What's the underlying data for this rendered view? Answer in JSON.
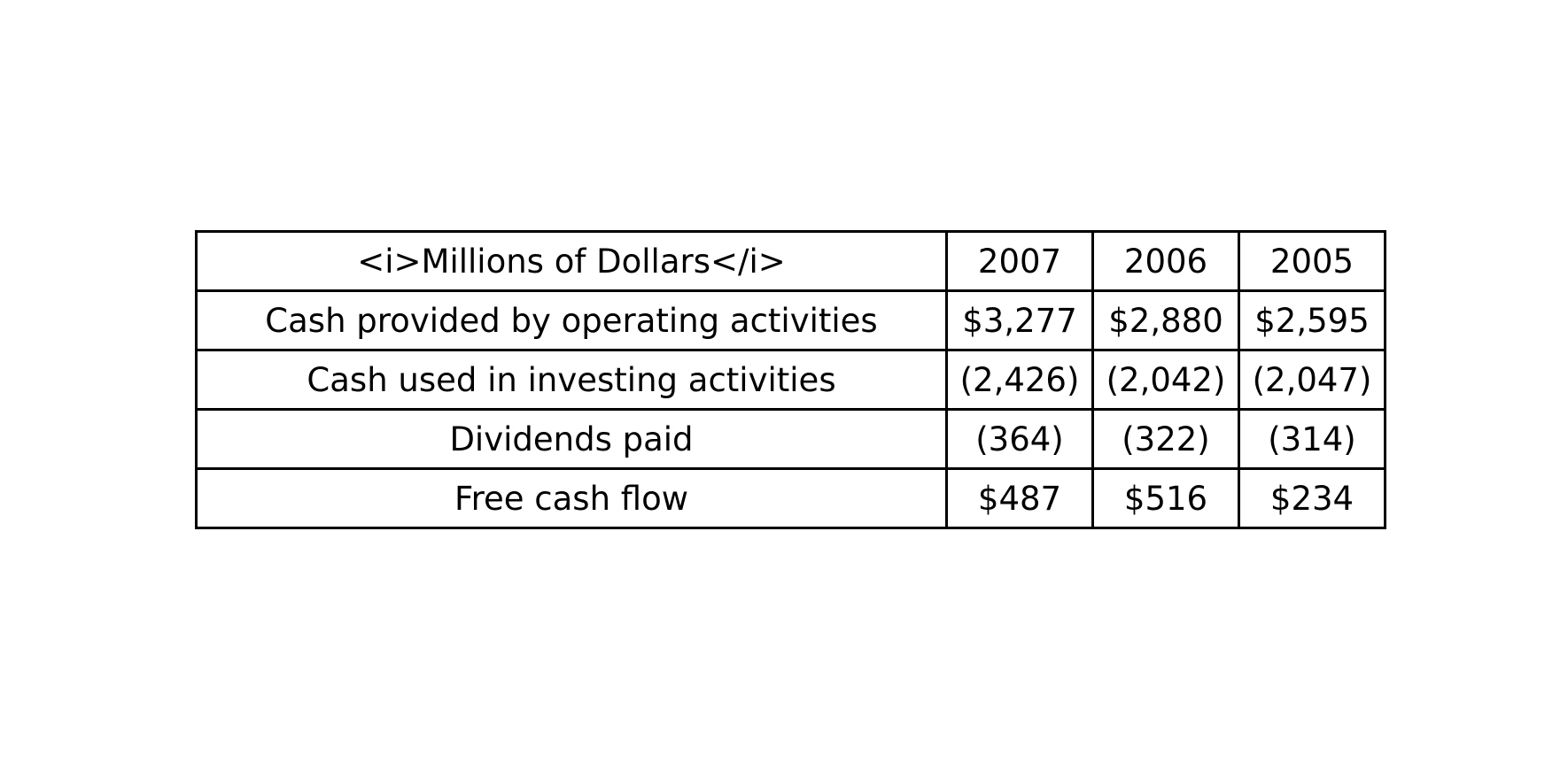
{
  "chart_data": {
    "type": "table",
    "columns": [
      "<i>Millions of Dollars</i>",
      "2007",
      "2006",
      "2005"
    ],
    "rows": [
      [
        "Cash provided by operating activities",
        "$3,277",
        "$2,880",
        "$2,595"
      ],
      [
        "Cash used in investing activities",
        "(2,426)",
        "(2,042)",
        "(2,047)"
      ],
      [
        "Dividends paid",
        "(364)",
        "(322)",
        "(314)"
      ],
      [
        "Free cash flow",
        "$487",
        "$516",
        "$234"
      ]
    ],
    "colors": {
      "border": "#000000",
      "text": "#000000",
      "background": "#ffffff"
    }
  }
}
